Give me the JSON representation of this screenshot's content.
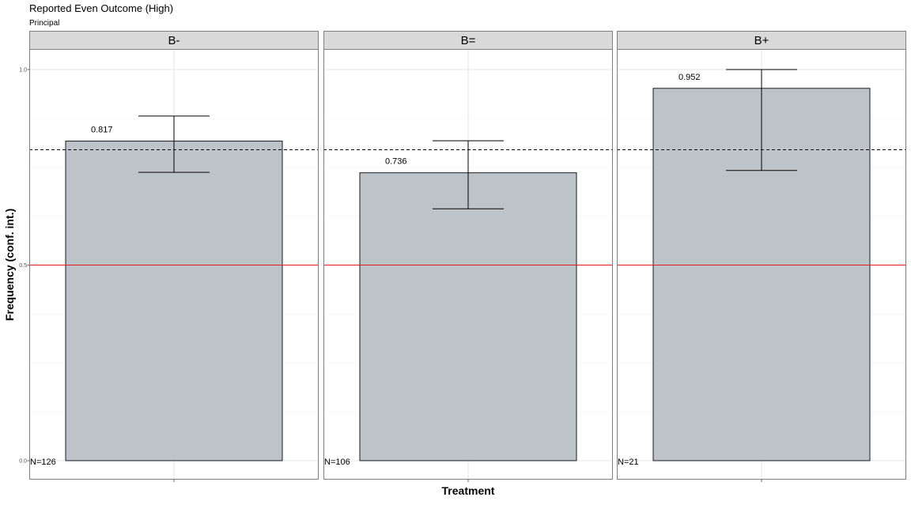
{
  "chart_data": {
    "type": "bar",
    "title": "Reported Even Outcome (High)",
    "subtitle": "Principal",
    "xlabel": "Treatment",
    "ylabel": "Frequency (conf. int.)",
    "ylim": [
      -0.05,
      1.05
    ],
    "yticks": [
      "0.0",
      "0.5",
      "1.0"
    ],
    "facets": [
      "B-",
      "B=",
      "B+"
    ],
    "values": [
      0.817,
      0.736,
      0.952
    ],
    "value_labels": [
      "0.817",
      "0.736",
      "0.952"
    ],
    "ci_lower": [
      0.737,
      0.644,
      0.742
    ],
    "ci_upper": [
      0.881,
      0.818,
      1.0
    ],
    "n_labels": [
      "N=126",
      "N=106",
      "N=21"
    ],
    "reference_lines": [
      {
        "value": 0.5,
        "style": "solid",
        "color": "#e41a1c"
      },
      {
        "value": 0.795,
        "style": "dashed",
        "color": "#000000"
      }
    ],
    "grid": true,
    "colors": {
      "bar_fill": "#bcc4ca",
      "bar_stroke": "#1a1a1a",
      "strip_fill": "#d9d9d9",
      "panel_border": "#7f7f7f",
      "grid_major": "#e6e6e6",
      "grid_minor": "#f2f2f2"
    }
  }
}
